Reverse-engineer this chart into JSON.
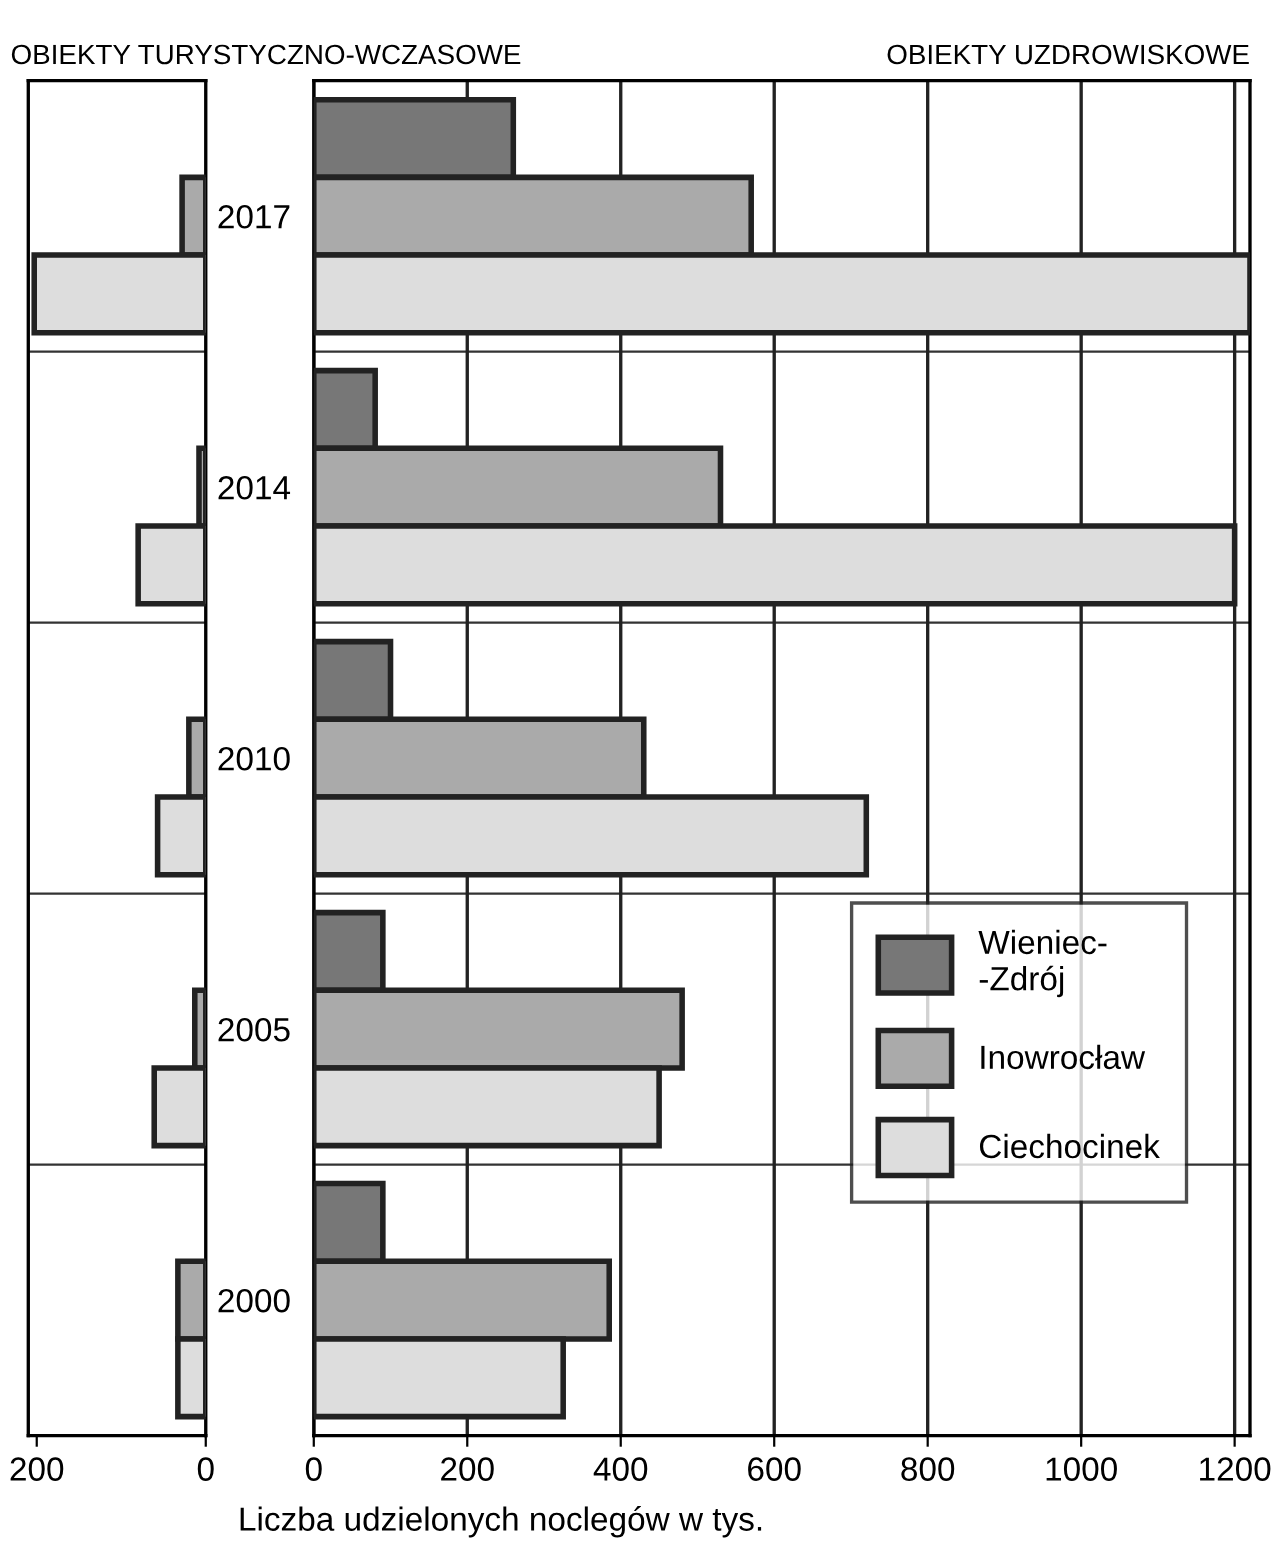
{
  "chart_data": [
    {
      "type": "bar",
      "orientation": "horizontal",
      "title": "OBIEKTY TURYSTYCZNO-WCZASOWE",
      "categories": [
        "2017",
        "2014",
        "2010",
        "2005",
        "2000"
      ],
      "series": [
        {
          "color": "#777777",
          "values": [
            null,
            null,
            null,
            null,
            null
          ]
        },
        {
          "color": "#aaaaaa",
          "values": [
            28,
            8,
            20,
            13,
            33
          ]
        },
        {
          "color": "#dddddd",
          "values": [
            203,
            80,
            57,
            61,
            33
          ]
        }
      ],
      "xlim": [
        210,
        0
      ],
      "xticks": [
        200,
        0
      ],
      "grid": false,
      "legend": false
    },
    {
      "type": "bar",
      "orientation": "horizontal",
      "title": "OBIEKTY UZDROWISKOWE",
      "xlabel": "Liczba udzielonych noclegów w tys.",
      "categories": [
        "2017",
        "2014",
        "2010",
        "2005",
        "2000"
      ],
      "series": [
        {
          "name": "Wieniec-\n-Zdrój",
          "color": "#777777",
          "values": [
            260,
            80,
            100,
            90,
            90
          ]
        },
        {
          "name": "Inowrocław",
          "color": "#aaaaaa",
          "values": [
            570,
            530,
            430,
            480,
            385
          ]
        },
        {
          "name": "Ciechocinek",
          "color": "#dddddd",
          "values": [
            1220,
            1200,
            720,
            450,
            325
          ]
        }
      ],
      "xlim": [
        0,
        1220
      ],
      "xticks": [
        0,
        200,
        400,
        600,
        800,
        1000,
        1200
      ],
      "grid": "x",
      "legend": "lower right",
      "tick_labels": "x"
    }
  ]
}
